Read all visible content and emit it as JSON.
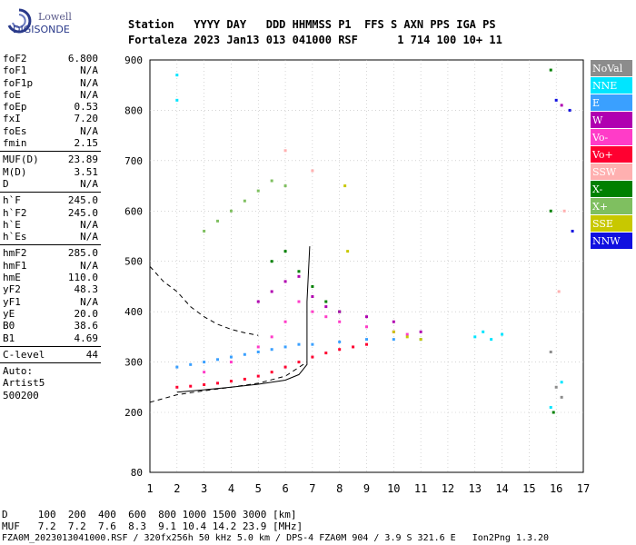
{
  "logo": {
    "line1": "Lowell",
    "line2": "DIGISONDE"
  },
  "header": {
    "row1": "Station   YYYY DAY   DDD HHMMSS P1  FFS S AXN PPS IGA PS",
    "row2": "Fortaleza 2023 Jan13 013 041000 RSF      1 714 100 10+ 11"
  },
  "params": [
    {
      "k": "foF2",
      "v": "6.800"
    },
    {
      "k": "foF1",
      "v": "N/A"
    },
    {
      "k": "foF1p",
      "v": "N/A"
    },
    {
      "k": "foE",
      "v": "N/A"
    },
    {
      "k": "foEp",
      "v": "0.53"
    },
    {
      "k": "fxI",
      "v": "7.20"
    },
    {
      "k": "foEs",
      "v": "N/A"
    },
    {
      "k": "fmin",
      "v": "2.15"
    },
    {
      "sep": true
    },
    {
      "k": "MUF(D)",
      "v": "23.89"
    },
    {
      "k": "M(D)",
      "v": "3.51"
    },
    {
      "k": "D",
      "v": "N/A"
    },
    {
      "sep": true
    },
    {
      "k": "h`F",
      "v": "245.0"
    },
    {
      "k": "h`F2",
      "v": "245.0"
    },
    {
      "k": "h`E",
      "v": "N/A"
    },
    {
      "k": "h`Es",
      "v": "N/A"
    },
    {
      "sep": true
    },
    {
      "k": "hmF2",
      "v": "285.0"
    },
    {
      "k": "hmF1",
      "v": "N/A"
    },
    {
      "k": "hmE",
      "v": "110.0"
    },
    {
      "k": "yF2",
      "v": "48.3"
    },
    {
      "k": "yF1",
      "v": "N/A"
    },
    {
      "k": "yE",
      "v": "20.0"
    },
    {
      "k": "B0",
      "v": "38.6"
    },
    {
      "k": "B1",
      "v": "4.69"
    },
    {
      "sep": true
    },
    {
      "k": "C-level",
      "v": "44"
    },
    {
      "sep": true
    },
    {
      "k": "Auto:",
      "v": ""
    },
    {
      "k": "Artist5",
      "v": ""
    },
    {
      "k": "500200",
      "v": ""
    }
  ],
  "legend": [
    {
      "label": "NoVal",
      "color": "#8c8c8c"
    },
    {
      "label": "NNE",
      "color": "#00e5ff"
    },
    {
      "label": "E",
      "color": "#3aa0ff"
    },
    {
      "label": "W",
      "color": "#b000b0"
    },
    {
      "label": "Vo-",
      "color": "#ff3cc8"
    },
    {
      "label": "Vo+",
      "color": "#ff0030"
    },
    {
      "label": "SSW",
      "color": "#ffb0b0"
    },
    {
      "label": "X-",
      "color": "#008000"
    },
    {
      "label": "X+",
      "color": "#7fbf60"
    },
    {
      "label": "SSE",
      "color": "#c8c800"
    },
    {
      "label": "NNW",
      "color": "#1010e0"
    }
  ],
  "footer": {
    "line1": "D     100  200  400  600  800 1000 1500 3000 [km]",
    "line2": "MUF   7.2  7.2  7.6  8.3  9.1 10.4 14.2 23.9 [MHz]",
    "line3": "FZA0M_2023013041000.RSF / 320fx256h 50 kHz 5.0 km / DPS-4 FZA0M 904 / 3.9 S 321.6 E   Ion2Png 1.3.20"
  },
  "chart_data": {
    "type": "scatter",
    "title": "",
    "xlabel": "",
    "ylabel": "",
    "xlim": [
      1,
      17
    ],
    "ylim": [
      80,
      900
    ],
    "x_ticks": [
      1,
      2,
      3,
      4,
      5,
      6,
      7,
      8,
      9,
      10,
      11,
      12,
      13,
      14,
      15,
      16,
      17
    ],
    "y_ticks": [
      80,
      200,
      300,
      400,
      500,
      600,
      700,
      800,
      900
    ],
    "grid": true,
    "legend_position": "right",
    "series": [
      {
        "name": "Vo+",
        "points": [
          [
            2.0,
            250
          ],
          [
            2.5,
            252
          ],
          [
            3.0,
            255
          ],
          [
            3.5,
            258
          ],
          [
            4.0,
            262
          ],
          [
            4.5,
            266
          ],
          [
            5.0,
            272
          ],
          [
            5.5,
            280
          ],
          [
            6.0,
            290
          ],
          [
            6.5,
            300
          ],
          [
            7.0,
            310
          ],
          [
            7.5,
            318
          ],
          [
            8.0,
            325
          ],
          [
            8.5,
            330
          ],
          [
            9.0,
            335
          ]
        ]
      },
      {
        "name": "E",
        "points": [
          [
            2.0,
            290
          ],
          [
            2.5,
            295
          ],
          [
            3.0,
            300
          ],
          [
            3.5,
            305
          ],
          [
            4.0,
            310
          ],
          [
            4.5,
            315
          ],
          [
            5.0,
            320
          ],
          [
            5.5,
            325
          ],
          [
            6.0,
            330
          ],
          [
            6.5,
            335
          ],
          [
            7.0,
            335
          ],
          [
            8.0,
            340
          ],
          [
            9.0,
            345
          ],
          [
            10.0,
            345
          ],
          [
            11.0,
            345
          ]
        ]
      },
      {
        "name": "Vo-",
        "points": [
          [
            3.0,
            280
          ],
          [
            4.0,
            300
          ],
          [
            5.0,
            330
          ],
          [
            5.5,
            350
          ],
          [
            6.0,
            380
          ],
          [
            6.5,
            420
          ],
          [
            7.0,
            400
          ],
          [
            7.5,
            390
          ],
          [
            8.0,
            380
          ],
          [
            9.0,
            370
          ],
          [
            10.0,
            360
          ],
          [
            10.5,
            355
          ]
        ]
      },
      {
        "name": "X-",
        "points": [
          [
            5.5,
            500
          ],
          [
            6.0,
            520
          ],
          [
            6.5,
            480
          ],
          [
            7.0,
            450
          ],
          [
            7.5,
            420
          ],
          [
            8.0,
            400
          ],
          [
            15.8,
            880
          ],
          [
            15.8,
            600
          ],
          [
            15.9,
            200
          ]
        ]
      },
      {
        "name": "X+",
        "points": [
          [
            3.0,
            560
          ],
          [
            3.5,
            580
          ],
          [
            4.0,
            600
          ],
          [
            4.5,
            620
          ],
          [
            5.0,
            640
          ],
          [
            5.5,
            660
          ],
          [
            6.0,
            650
          ]
        ]
      },
      {
        "name": "W",
        "points": [
          [
            5.0,
            420
          ],
          [
            5.5,
            440
          ],
          [
            6.0,
            460
          ],
          [
            6.5,
            470
          ],
          [
            7.0,
            430
          ],
          [
            7.5,
            410
          ],
          [
            8.0,
            400
          ],
          [
            9.0,
            390
          ],
          [
            10.0,
            380
          ],
          [
            11.0,
            360
          ],
          [
            16.2,
            810
          ]
        ]
      },
      {
        "name": "NNE",
        "points": [
          [
            2.0,
            870
          ],
          [
            2.0,
            820
          ],
          [
            13.0,
            350
          ],
          [
            13.3,
            360
          ],
          [
            13.6,
            345
          ],
          [
            14.0,
            355
          ],
          [
            15.8,
            210
          ],
          [
            16.2,
            260
          ]
        ]
      },
      {
        "name": "SSE",
        "points": [
          [
            10.0,
            360
          ],
          [
            10.5,
            350
          ],
          [
            11.0,
            345
          ],
          [
            8.3,
            520
          ],
          [
            8.2,
            650
          ]
        ]
      },
      {
        "name": "SSW",
        "points": [
          [
            6.0,
            720
          ],
          [
            7.0,
            680
          ],
          [
            16.1,
            440
          ],
          [
            16.3,
            600
          ]
        ]
      },
      {
        "name": "NNW",
        "points": [
          [
            16.0,
            820
          ],
          [
            16.5,
            800
          ],
          [
            16.6,
            560
          ]
        ]
      },
      {
        "name": "NoVal",
        "points": [
          [
            15.8,
            320
          ],
          [
            16.0,
            250
          ],
          [
            16.2,
            230
          ]
        ]
      }
    ],
    "curves": [
      {
        "style": "dashed",
        "points": [
          [
            1.0,
            220
          ],
          [
            2.0,
            235
          ],
          [
            3.0,
            243
          ],
          [
            4.0,
            250
          ],
          [
            5.0,
            258
          ],
          [
            6.0,
            272
          ],
          [
            6.8,
            300
          ]
        ]
      },
      {
        "style": "dashed",
        "points": [
          [
            1.0,
            490
          ],
          [
            1.5,
            460
          ],
          [
            2.0,
            440
          ],
          [
            2.5,
            410
          ],
          [
            3.0,
            390
          ],
          [
            3.5,
            375
          ],
          [
            4.0,
            365
          ],
          [
            4.5,
            358
          ],
          [
            5.0,
            353
          ]
        ]
      },
      {
        "style": "solid",
        "points": [
          [
            2.0,
            240
          ],
          [
            3.0,
            245
          ],
          [
            4.0,
            250
          ],
          [
            5.0,
            256
          ],
          [
            5.5,
            260
          ],
          [
            6.0,
            264
          ],
          [
            6.5,
            275
          ],
          [
            6.8,
            295
          ],
          [
            6.8,
            420
          ],
          [
            6.9,
            530
          ]
        ]
      }
    ]
  }
}
